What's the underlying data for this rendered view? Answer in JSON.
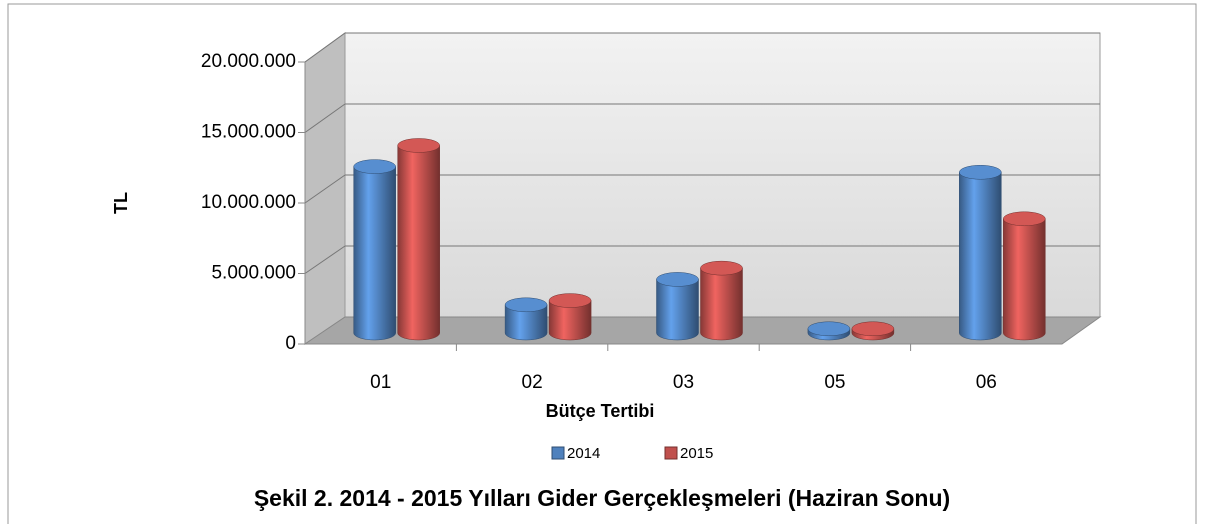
{
  "chart_data": {
    "type": "bar",
    "title": "Şekil 2. 2014 - 2015 Yılları Gider Gerçekleşmeleri (Haziran Sonu)",
    "x_label": "Bütçe Tertibi",
    "y_label": "TL",
    "categories": [
      "01",
      "02",
      "03",
      "05",
      "06"
    ],
    "series": [
      {
        "name": "2014",
        "color": "#4f81bd",
        "values": [
          11800000,
          2000000,
          3800000,
          300000,
          11400000
        ]
      },
      {
        "name": "2015",
        "color": "#c0504d",
        "values": [
          13300000,
          2300000,
          4600000,
          300000,
          8100000
        ]
      }
    ],
    "ylim": [
      0,
      20000000
    ],
    "yticks": [
      0,
      {
        "value": 5000000,
        "label": "5.000.000"
      },
      {
        "value": 10000000,
        "label": "10.000.000"
      },
      {
        "value": 15000000,
        "label": "15.000.000"
      },
      {
        "value": 20000000,
        "label": "20.000.000"
      }
    ],
    "grid": true,
    "legend": "bottom"
  }
}
